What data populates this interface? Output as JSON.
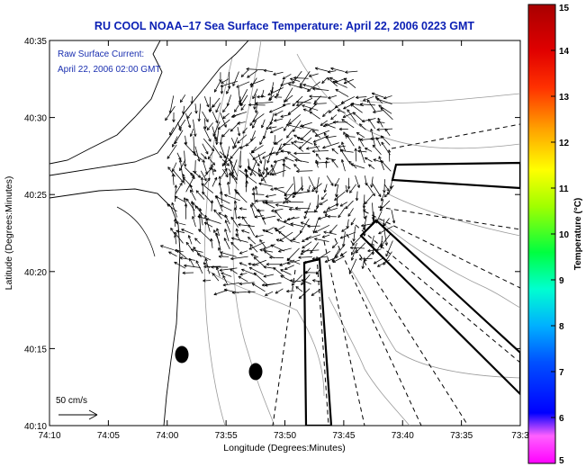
{
  "title": "RU COOL  NOAA–17  Sea Surface Temperature:  April 22, 2006 0223 GMT",
  "annotation": {
    "line1": "Raw Surface Current:",
    "line2": "April 22, 2006 02:00 GMT"
  },
  "scale_label": "50 cm/s",
  "x_axis": {
    "label": "Longitude (Degrees:Minutes)",
    "ticks": [
      "74:10",
      "74:05",
      "74:00",
      "73:55",
      "73:50",
      "73:45",
      "73:40",
      "73:35",
      "73:3"
    ]
  },
  "y_axis": {
    "label": "Latitude (Degrees:Minutes)",
    "ticks": [
      "40:35",
      "40:30",
      "40:25",
      "40:20",
      "40:15",
      "40:10"
    ]
  },
  "colorbar": {
    "label": "Temperature (°C)",
    "ticks": [
      "15",
      "14",
      "13",
      "12",
      "11",
      "10",
      "9",
      "8",
      "7",
      "6",
      "5"
    ],
    "colors": [
      "#ff00ff",
      "#ff40ff",
      "#0000ff",
      "#0050ff",
      "#00b0ff",
      "#00ffd0",
      "#00ff40",
      "#a0ff00",
      "#ffff00",
      "#ffa000",
      "#ff3000",
      "#e00000",
      "#b00000"
    ]
  },
  "colors": {
    "title": "#0a1fb4",
    "annotation": "#1a2fb0",
    "coastline": "#000000",
    "bathymetry": "#9a9a9a",
    "vectors": "#000000"
  }
}
